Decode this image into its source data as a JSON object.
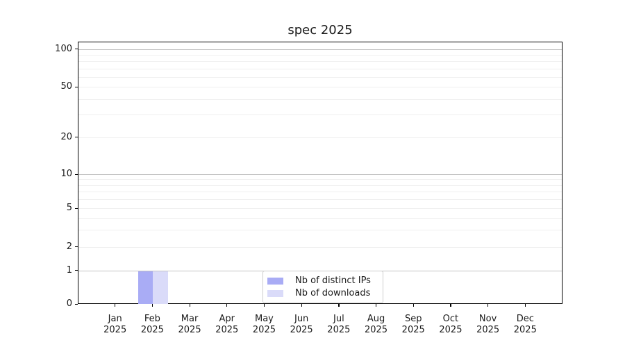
{
  "title": "spec 2025",
  "chart_data": {
    "type": "bar",
    "title": "spec 2025",
    "categories": [
      "Jan",
      "Feb",
      "Mar",
      "Apr",
      "May",
      "Jun",
      "Jul",
      "Aug",
      "Sep",
      "Oct",
      "Nov",
      "Dec"
    ],
    "category_year": "2025",
    "series": [
      {
        "name": "Nb of distinct IPs",
        "color": "#a9acf5",
        "values": [
          0,
          1,
          0,
          0,
          0,
          0,
          0,
          0,
          0,
          0,
          0,
          0
        ]
      },
      {
        "name": "Nb of downloads",
        "color": "#dadbf9",
        "values": [
          0,
          1,
          0,
          0,
          0,
          0,
          0,
          0,
          0,
          0,
          0,
          0
        ]
      }
    ],
    "y_axis": {
      "scale": "symlog",
      "ticks": [
        0,
        1,
        2,
        5,
        10,
        20,
        50,
        100
      ],
      "minor_gridlines": [
        3,
        4,
        6,
        7,
        8,
        9,
        30,
        40,
        60,
        70,
        80,
        90
      ],
      "decade_gridlines": [
        1,
        10,
        100
      ],
      "range_top_value": 120
    },
    "x_axis": {
      "label_line2": "2025"
    },
    "grid": true,
    "legend_position": "lower center",
    "legend": [
      "Nb of distinct IPs",
      "Nb of downloads"
    ]
  },
  "colors": {
    "background": "#ffffff",
    "axis": "#000000",
    "text": "#1a1a1a",
    "grid_minor": "#efefef",
    "grid_decade": "#c2c2c2",
    "legend_border": "#cccccc",
    "series_1": "#a9acf5",
    "series_2": "#dadbf9"
  }
}
